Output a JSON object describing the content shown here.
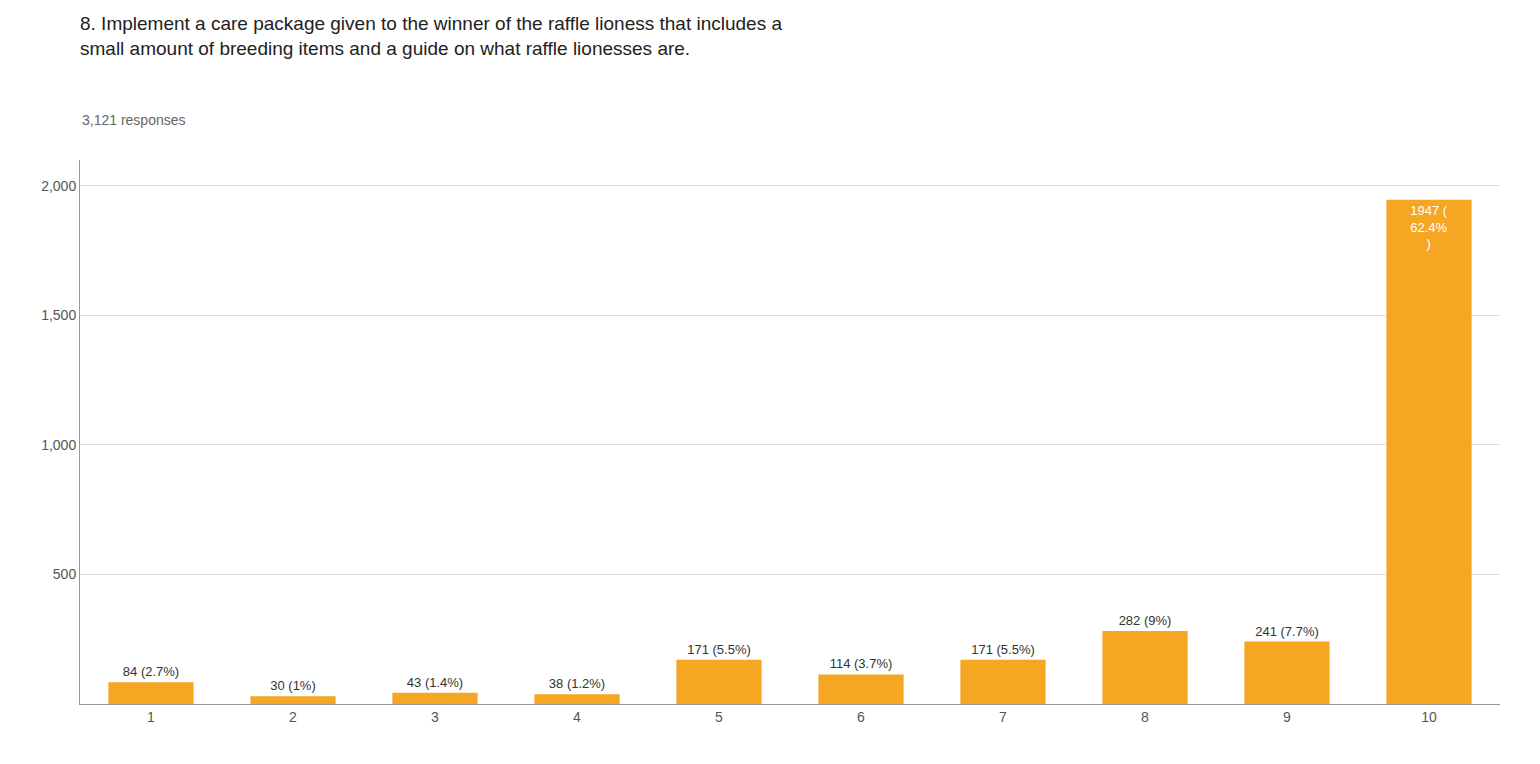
{
  "chart_data": {
    "type": "bar",
    "title": "8. Implement a care package given to the winner of the raffle lioness that includes a\nsmall amount of breeding items and a guide on what raffle lionesses are.",
    "subtitle": "3,121 responses",
    "categories": [
      1,
      2,
      3,
      4,
      5,
      6,
      7,
      8,
      9,
      10
    ],
    "values": [
      84,
      30,
      43,
      38,
      171,
      114,
      171,
      282,
      241,
      1947
    ],
    "value_labels": [
      "84 (2.7%)",
      "30 (1%)",
      "43 (1.4%)",
      "38 (1.2%)",
      "171 (5.5%)",
      "114 (3.7%)",
      "171 (5.5%)",
      "282 (9%)",
      "241 (7.7%)",
      "1947 (\n62.4%\n)"
    ],
    "data_labels": true,
    "color": "#F5A623",
    "ylim": [
      0,
      2100
    ],
    "yticks": [
      500,
      {
        "value": 1000,
        "label": "1,000"
      },
      {
        "value": 1500,
        "label": "1,500"
      },
      {
        "value": 2000,
        "label": "2,000"
      }
    ],
    "grid": true
  }
}
